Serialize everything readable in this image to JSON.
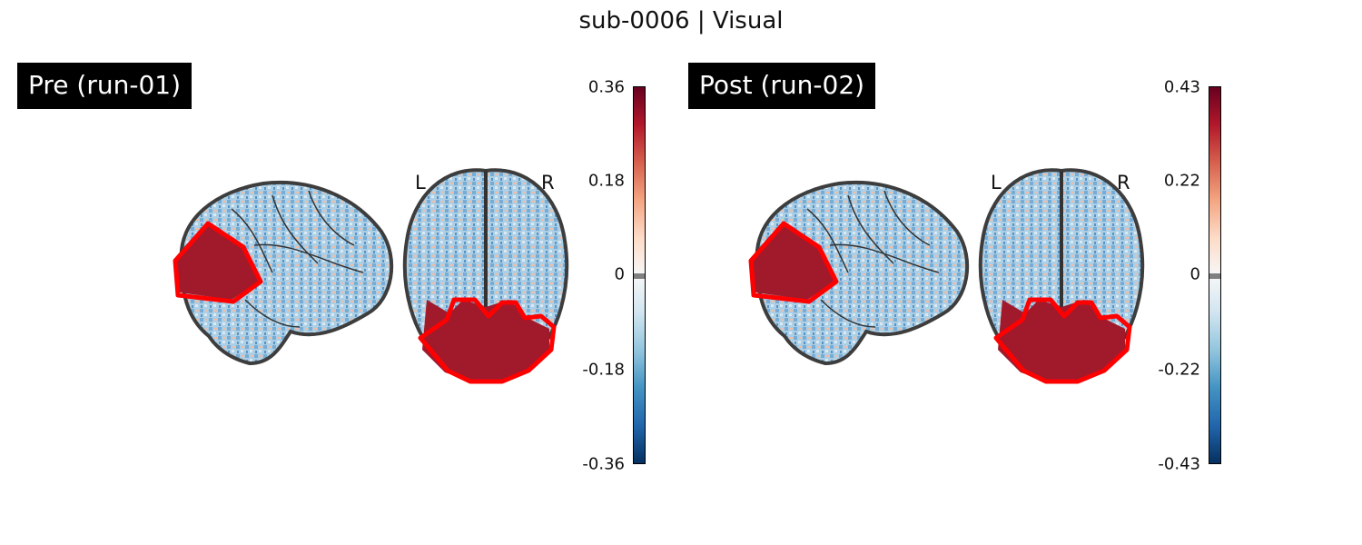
{
  "figure": {
    "title": "sub-0006 | Visual"
  },
  "panels": [
    {
      "label": "Pre (run-01)",
      "colorbar": {
        "cmap": "RdBu_r",
        "ticks": [
          "0.36",
          "0.18",
          "0",
          "-0.18",
          "-0.36"
        ]
      },
      "orientation": {
        "left": "L",
        "right": "R"
      }
    },
    {
      "label": "Post (run-02)",
      "colorbar": {
        "cmap": "RdBu_r",
        "ticks": [
          "0.43",
          "0.22",
          "0",
          "-0.22",
          "-0.43"
        ]
      },
      "orientation": {
        "left": "L",
        "right": "R"
      }
    }
  ],
  "colors": {
    "roi_outline": "#ff0000",
    "brain_outline": "#333333",
    "label_bg": "#000000",
    "cmap_stops": [
      "#67001f",
      "#b2182b",
      "#d6604d",
      "#f4a582",
      "#fddbc7",
      "#f7f7f7",
      "#d1e5f0",
      "#92c5de",
      "#4393c3",
      "#2166ac",
      "#053061"
    ]
  }
}
